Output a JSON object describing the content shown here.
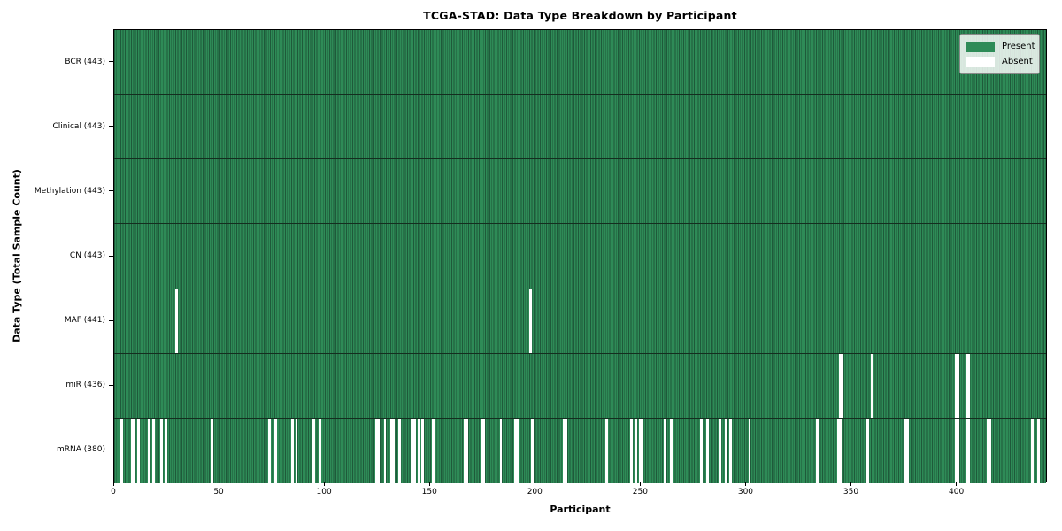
{
  "title": "TCGA-STAD: Data Type Breakdown by Participant",
  "axes": {
    "x_label": "Participant",
    "y_label": "Data Type (Total Sample Count)",
    "x_ticks": [
      0,
      50,
      100,
      150,
      200,
      250,
      300,
      350,
      400
    ]
  },
  "legend": {
    "items": [
      {
        "label": "Present",
        "color": "#2e8b57"
      },
      {
        "label": "Absent",
        "color": "#ffffff"
      }
    ]
  },
  "colors": {
    "present": "#2e8b57",
    "absent": "#ffffff",
    "cell_edge": "#1e5a3a",
    "row_separator": "#142e1f",
    "spine": "#000000"
  },
  "chart_data": {
    "type": "heatmap",
    "title": "TCGA-STAD: Data Type Breakdown by Participant",
    "xlabel": "Participant",
    "ylabel": "Data Type (Total Sample Count)",
    "x_range": [
      0,
      443
    ],
    "n_participants": 443,
    "legend_position": "upper right",
    "value_encoding": {
      "present": "#2e8b57",
      "absent": "#ffffff"
    },
    "rows": [
      {
        "data_type": "BCR",
        "label": "BCR (443)",
        "present_count": 443,
        "absent_participants": []
      },
      {
        "data_type": "Clinical",
        "label": "Clinical (443)",
        "present_count": 443,
        "absent_participants": []
      },
      {
        "data_type": "Methylation",
        "label": "Methylation (443)",
        "present_count": 443,
        "absent_participants": []
      },
      {
        "data_type": "CN",
        "label": "CN (443)",
        "present_count": 443,
        "absent_participants": []
      },
      {
        "data_type": "MAF",
        "label": "MAF (441)",
        "present_count": 441,
        "absent_participants": [
          29,
          197
        ]
      },
      {
        "data_type": "miR",
        "label": "miR (436)",
        "present_count": 436,
        "absent_participants": [
          344,
          345,
          359,
          399,
          400,
          404,
          405
        ]
      },
      {
        "data_type": "mRNA",
        "label": "mRNA (380)",
        "present_count": 380,
        "absent_participants": [
          3,
          8,
          9,
          11,
          16,
          18,
          22,
          24,
          46,
          73,
          76,
          84,
          86,
          94,
          97,
          124,
          125,
          128,
          131,
          132,
          135,
          141,
          142,
          144,
          146,
          151,
          166,
          167,
          174,
          175,
          183,
          190,
          191,
          198,
          213,
          214,
          233,
          245,
          247,
          249,
          250,
          261,
          264,
          278,
          281,
          287,
          290,
          292,
          301,
          333,
          343,
          344,
          357,
          375,
          376,
          399,
          400,
          404,
          405,
          414,
          415,
          435,
          438
        ]
      }
    ]
  }
}
